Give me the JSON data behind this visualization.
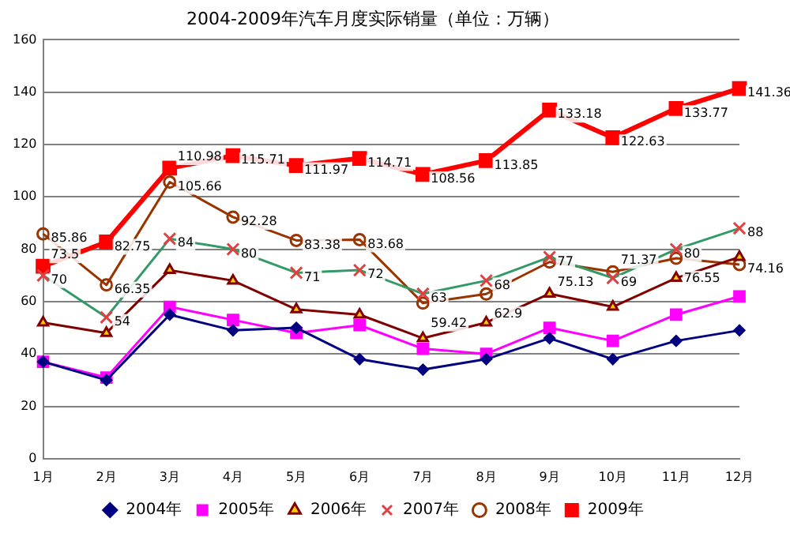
{
  "chart_data": {
    "type": "line",
    "title": "2004-2009年汽车月度实际销量（单位：万辆）",
    "categories": [
      "1月",
      "2月",
      "3月",
      "4月",
      "5月",
      "6月",
      "7月",
      "8月",
      "9月",
      "10月",
      "11月",
      "12月"
    ],
    "ylim": [
      0,
      160
    ],
    "yticks": [
      0,
      20,
      40,
      60,
      80,
      100,
      120,
      140,
      160
    ],
    "grid": "y",
    "legend": "bottom",
    "series": [
      {
        "name": "2004年",
        "color": "#000080",
        "marker": "diamond",
        "values": [
          37,
          30,
          55,
          49,
          50,
          38,
          34,
          38,
          46,
          38,
          45,
          49
        ]
      },
      {
        "name": "2005年",
        "color": "#ff00ff",
        "marker": "square",
        "values": [
          37,
          31,
          58,
          53,
          48,
          51,
          42,
          40,
          50,
          45,
          55,
          62
        ]
      },
      {
        "name": "2006年",
        "color": "#800000",
        "marker": "triangle",
        "values": [
          52,
          48,
          72,
          68,
          57,
          55,
          46,
          52,
          63,
          58,
          69,
          77
        ]
      },
      {
        "name": "2007年",
        "color": "#339966",
        "marker": "cross",
        "values": [
          70,
          54,
          84,
          80,
          71,
          72,
          63,
          68,
          77,
          69,
          80,
          88
        ],
        "value_labels": [
          "70",
          "54",
          "84",
          "80",
          "71",
          "72",
          "63",
          "68",
          "77",
          "69",
          "80",
          "88"
        ]
      },
      {
        "name": "2008年",
        "color": "#993300",
        "marker": "circle",
        "values": [
          85.86,
          66.35,
          105.66,
          92.28,
          83.38,
          83.68,
          59.42,
          62.9,
          75.13,
          71.37,
          76.55,
          74.16
        ],
        "value_labels": [
          "85.86",
          "66.35",
          "105.66",
          "92.28",
          "83.38",
          "83.68",
          "59.42",
          "62.9",
          "75.13",
          "71.37",
          "76.55",
          "74.16"
        ]
      },
      {
        "name": "2009年",
        "color": "#ff0000",
        "marker": "square",
        "values": [
          73.5,
          82.75,
          110.98,
          115.71,
          111.97,
          114.71,
          108.56,
          113.85,
          133.18,
          122.63,
          133.77,
          141.36
        ],
        "value_labels": [
          "73.5",
          "82.75",
          "110.98",
          "115.71",
          "111.97",
          "114.71",
          "108.56",
          "113.85",
          "133.18",
          "122.63",
          "133.77",
          "141.36"
        ]
      }
    ]
  }
}
